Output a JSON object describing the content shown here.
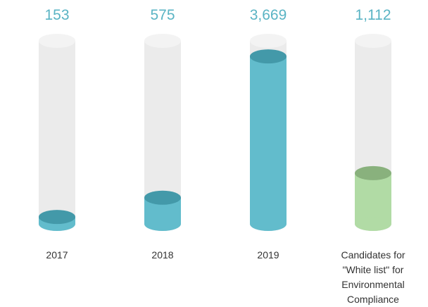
{
  "chart_data": {
    "type": "cylinder",
    "categories": [
      "2017",
      "2018",
      "2019",
      "Candidates for \"White list\" for Environmental Compliance"
    ],
    "values": [
      153,
      575,
      3669,
      1112
    ],
    "value_labels": [
      "153",
      "575",
      "3,669",
      "1,112"
    ],
    "colors": [
      "#62bccc",
      "#62bccc",
      "#62bccc",
      "#b1dba5"
    ]
  }
}
